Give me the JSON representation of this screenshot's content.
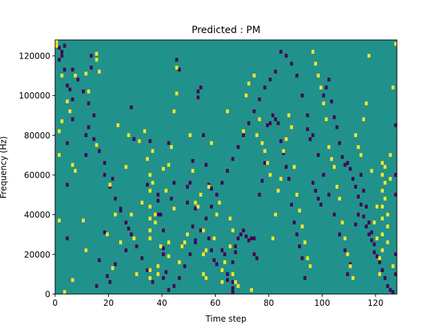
{
  "chart_data": {
    "type": "heatmap",
    "title": "Predicted : PM",
    "xlabel": "Time step",
    "ylabel": "Frequency (Hz)",
    "xlim": [
      0,
      128
    ],
    "ylim": [
      0,
      128000
    ],
    "x_ticks": [
      0,
      20,
      40,
      60,
      80,
      100,
      120
    ],
    "y_ticks": [
      0,
      20000,
      40000,
      60000,
      80000,
      100000,
      120000
    ],
    "x_tick_labels": [
      "0",
      "20",
      "40",
      "60",
      "80",
      "100",
      "120"
    ],
    "y_tick_labels": [
      "0",
      "20000",
      "40000",
      "60000",
      "80000",
      "100000",
      "120000"
    ],
    "n_time_steps": 128,
    "n_freq_bins": 128,
    "bin_hz": 1000,
    "colors": {
      "background": "#21918c",
      "low": "#440154",
      "high": "#fde725"
    },
    "low_cells": [
      [
        1,
        124
      ],
      [
        1,
        118
      ],
      [
        2,
        122
      ],
      [
        2,
        120
      ],
      [
        3,
        125
      ],
      [
        3,
        113
      ],
      [
        4,
        55
      ],
      [
        4,
        28
      ],
      [
        4,
        105
      ],
      [
        5,
        103
      ],
      [
        6,
        98
      ],
      [
        6,
        113
      ],
      [
        14,
        90
      ],
      [
        15,
        4
      ],
      [
        16,
        17
      ],
      [
        13,
        120
      ],
      [
        13,
        114
      ],
      [
        11,
        70
      ],
      [
        12,
        84
      ],
      [
        11,
        80
      ],
      [
        18,
        60
      ],
      [
        18,
        31
      ],
      [
        19,
        9
      ],
      [
        20,
        6
      ],
      [
        21,
        58
      ],
      [
        22,
        15
      ],
      [
        24,
        43
      ],
      [
        28,
        94
      ],
      [
        27,
        33
      ],
      [
        26,
        22
      ],
      [
        29,
        78
      ],
      [
        31,
        77
      ],
      [
        34,
        55
      ],
      [
        35,
        77
      ],
      [
        38,
        50
      ],
      [
        38,
        47
      ],
      [
        38,
        40
      ],
      [
        39,
        40
      ],
      [
        40,
        32
      ],
      [
        40,
        23
      ],
      [
        40,
        20
      ],
      [
        41,
        11
      ],
      [
        40,
        8
      ],
      [
        42,
        76
      ],
      [
        43,
        48
      ],
      [
        44,
        56
      ],
      [
        45,
        118
      ],
      [
        46,
        113
      ],
      [
        47,
        24
      ],
      [
        49,
        54
      ],
      [
        49,
        46
      ],
      [
        50,
        56
      ],
      [
        51,
        34
      ],
      [
        51,
        67
      ],
      [
        52,
        27
      ],
      [
        52,
        43
      ],
      [
        53,
        99
      ],
      [
        53,
        102
      ],
      [
        54,
        104
      ],
      [
        55,
        80
      ],
      [
        56,
        65
      ],
      [
        57,
        55
      ],
      [
        58,
        53
      ],
      [
        57,
        28
      ],
      [
        58,
        22
      ],
      [
        59,
        17
      ],
      [
        60,
        15
      ],
      [
        62,
        22
      ],
      [
        63,
        20
      ],
      [
        64,
        10
      ],
      [
        64,
        7
      ],
      [
        65,
        24
      ],
      [
        66,
        16
      ],
      [
        66,
        6
      ],
      [
        66,
        3
      ],
      [
        66,
        1
      ],
      [
        67,
        24
      ],
      [
        67,
        21
      ],
      [
        68,
        28
      ],
      [
        69,
        30
      ],
      [
        70,
        32
      ],
      [
        71,
        29
      ],
      [
        72,
        27
      ],
      [
        73,
        28
      ],
      [
        74,
        28
      ],
      [
        74,
        20
      ],
      [
        75,
        18
      ],
      [
        76,
        50
      ],
      [
        77,
        57
      ],
      [
        78,
        66
      ],
      [
        79,
        85
      ],
      [
        80,
        86
      ],
      [
        81,
        90
      ],
      [
        82,
        88
      ],
      [
        83,
        86
      ],
      [
        84,
        77
      ],
      [
        85,
        71
      ],
      [
        86,
        64
      ],
      [
        87,
        58
      ],
      [
        88,
        45
      ],
      [
        89,
        36
      ],
      [
        90,
        30
      ],
      [
        91,
        24
      ],
      [
        92,
        18
      ],
      [
        93,
        8
      ],
      [
        94,
        83
      ],
      [
        95,
        78
      ],
      [
        96,
        56
      ],
      [
        97,
        52
      ],
      [
        98,
        48
      ],
      [
        99,
        45
      ],
      [
        100,
        100
      ],
      [
        101,
        104
      ],
      [
        102,
        108
      ],
      [
        103,
        97
      ],
      [
        104,
        89
      ],
      [
        105,
        84
      ],
      [
        106,
        76
      ],
      [
        107,
        69
      ],
      [
        108,
        65
      ],
      [
        109,
        66
      ],
      [
        110,
        63
      ],
      [
        111,
        58
      ],
      [
        112,
        54
      ],
      [
        113,
        49
      ],
      [
        114,
        45
      ],
      [
        115,
        39
      ],
      [
        116,
        34
      ],
      [
        117,
        30
      ],
      [
        118,
        27
      ],
      [
        119,
        21
      ],
      [
        120,
        19
      ],
      [
        121,
        16
      ],
      [
        122,
        12
      ],
      [
        123,
        8
      ],
      [
        124,
        4
      ],
      [
        125,
        2
      ],
      [
        126,
        1
      ],
      [
        127,
        10
      ],
      [
        127,
        20
      ],
      [
        127,
        50
      ],
      [
        127,
        60
      ],
      [
        127,
        85
      ],
      [
        114,
        60
      ],
      [
        115,
        52
      ],
      [
        116,
        44
      ],
      [
        117,
        36
      ],
      [
        118,
        31
      ],
      [
        119,
        25
      ],
      [
        113,
        40
      ],
      [
        112,
        35
      ],
      [
        110,
        15
      ],
      [
        109,
        10
      ],
      [
        108,
        22
      ],
      [
        106,
        30
      ],
      [
        104,
        40
      ],
      [
        102,
        50
      ],
      [
        100,
        60
      ],
      [
        98,
        70
      ],
      [
        96,
        80
      ],
      [
        94,
        90
      ],
      [
        92,
        100
      ],
      [
        90,
        110
      ],
      [
        88,
        116
      ],
      [
        86,
        120
      ],
      [
        84,
        122
      ],
      [
        82,
        112
      ],
      [
        80,
        108
      ],
      [
        78,
        104
      ],
      [
        76,
        98
      ],
      [
        74,
        92
      ],
      [
        72,
        86
      ],
      [
        70,
        80
      ],
      [
        68,
        74
      ],
      [
        66,
        68
      ],
      [
        64,
        62
      ],
      [
        62,
        56
      ],
      [
        60,
        50
      ],
      [
        58,
        44
      ],
      [
        56,
        38
      ],
      [
        54,
        32
      ],
      [
        52,
        26
      ],
      [
        50,
        20
      ],
      [
        48,
        14
      ],
      [
        46,
        8
      ],
      [
        44,
        4
      ],
      [
        42,
        2
      ],
      [
        36,
        6
      ],
      [
        34,
        12
      ],
      [
        32,
        18
      ],
      [
        30,
        24
      ],
      [
        28,
        30
      ],
      [
        26,
        36
      ],
      [
        24,
        42
      ],
      [
        22,
        48
      ],
      [
        20,
        54
      ],
      [
        18,
        66
      ],
      [
        16,
        72
      ],
      [
        14,
        78
      ],
      [
        12,
        96
      ],
      [
        10,
        102
      ],
      [
        8,
        108
      ],
      [
        6,
        88
      ],
      [
        4,
        76
      ]
    ],
    "high_cells": [
      [
        0,
        127
      ],
      [
        0,
        125
      ],
      [
        1,
        70
      ],
      [
        1,
        82
      ],
      [
        1,
        37
      ],
      [
        2,
        87
      ],
      [
        2,
        110
      ],
      [
        3,
        1
      ],
      [
        4,
        97
      ],
      [
        5,
        92
      ],
      [
        6,
        65
      ],
      [
        6,
        7
      ],
      [
        7,
        110
      ],
      [
        7,
        62
      ],
      [
        10,
        37
      ],
      [
        11,
        22
      ],
      [
        11,
        111
      ],
      [
        12,
        102
      ],
      [
        15,
        75
      ],
      [
        15,
        121
      ],
      [
        15,
        118
      ],
      [
        16,
        112
      ],
      [
        19,
        30
      ],
      [
        20,
        55
      ],
      [
        21,
        13
      ],
      [
        22,
        40
      ],
      [
        23,
        85
      ],
      [
        24,
        26
      ],
      [
        26,
        64
      ],
      [
        27,
        80
      ],
      [
        28,
        40
      ],
      [
        29,
        28
      ],
      [
        30,
        10
      ],
      [
        31,
        77
      ],
      [
        32,
        46
      ],
      [
        33,
        82
      ],
      [
        34,
        68
      ],
      [
        35,
        60
      ],
      [
        35,
        52
      ],
      [
        35,
        44
      ],
      [
        35,
        38
      ],
      [
        35,
        32
      ],
      [
        35,
        28
      ],
      [
        35,
        8
      ],
      [
        35,
        12
      ],
      [
        36,
        72
      ],
      [
        36,
        56
      ],
      [
        37,
        40
      ],
      [
        37,
        36
      ],
      [
        38,
        10
      ],
      [
        38,
        14
      ],
      [
        39,
        24
      ],
      [
        40,
        63
      ],
      [
        41,
        52
      ],
      [
        42,
        19
      ],
      [
        42,
        26
      ],
      [
        42,
        65
      ],
      [
        43,
        74
      ],
      [
        44,
        92
      ],
      [
        44,
        43
      ],
      [
        45,
        101
      ],
      [
        45,
        114
      ],
      [
        46,
        16
      ],
      [
        47,
        24
      ],
      [
        48,
        26
      ],
      [
        49,
        30
      ],
      [
        50,
        80
      ],
      [
        51,
        62
      ],
      [
        52,
        46
      ],
      [
        53,
        44
      ],
      [
        54,
        50
      ],
      [
        55,
        32
      ],
      [
        55,
        20
      ],
      [
        55,
        10
      ],
      [
        56,
        8
      ],
      [
        56,
        22
      ],
      [
        57,
        54
      ],
      [
        58,
        76
      ],
      [
        59,
        28
      ],
      [
        60,
        40
      ],
      [
        61,
        46
      ],
      [
        62,
        6
      ],
      [
        62,
        12
      ],
      [
        63,
        16
      ],
      [
        64,
        92
      ],
      [
        65,
        38
      ],
      [
        65,
        24
      ],
      [
        66,
        32
      ],
      [
        66,
        10
      ],
      [
        67,
        6
      ],
      [
        68,
        4
      ],
      [
        70,
        82
      ],
      [
        71,
        100
      ],
      [
        72,
        106
      ],
      [
        73,
        2
      ],
      [
        74,
        110
      ],
      [
        75,
        80
      ],
      [
        76,
        88
      ],
      [
        77,
        76
      ],
      [
        78,
        72
      ],
      [
        79,
        66
      ],
      [
        80,
        60
      ],
      [
        81,
        28
      ],
      [
        82,
        40
      ],
      [
        83,
        52
      ],
      [
        84,
        58
      ],
      [
        85,
        72
      ],
      [
        86,
        78
      ],
      [
        87,
        90
      ],
      [
        88,
        84
      ],
      [
        89,
        64
      ],
      [
        90,
        50
      ],
      [
        91,
        42
      ],
      [
        92,
        34
      ],
      [
        93,
        26
      ],
      [
        94,
        18
      ],
      [
        95,
        14
      ],
      [
        96,
        122
      ],
      [
        97,
        116
      ],
      [
        98,
        110
      ],
      [
        99,
        104
      ],
      [
        100,
        96
      ],
      [
        101,
        88
      ],
      [
        102,
        74
      ],
      [
        103,
        68
      ],
      [
        104,
        64
      ],
      [
        105,
        54
      ],
      [
        106,
        48
      ],
      [
        107,
        36
      ],
      [
        108,
        28
      ],
      [
        109,
        20
      ],
      [
        110,
        14
      ],
      [
        111,
        8
      ],
      [
        112,
        80
      ],
      [
        113,
        74
      ],
      [
        114,
        70
      ],
      [
        115,
        88
      ],
      [
        116,
        96
      ],
      [
        117,
        120
      ],
      [
        118,
        62
      ],
      [
        119,
        36
      ],
      [
        120,
        44
      ],
      [
        120,
        28
      ],
      [
        121,
        18
      ],
      [
        121,
        10
      ],
      [
        122,
        66
      ],
      [
        122,
        60
      ],
      [
        122,
        52
      ],
      [
        122,
        44
      ],
      [
        122,
        38
      ],
      [
        122,
        30
      ],
      [
        122,
        22
      ],
      [
        123,
        64
      ],
      [
        123,
        56
      ],
      [
        123,
        48
      ],
      [
        124,
        40
      ],
      [
        124,
        34
      ],
      [
        124,
        26
      ],
      [
        125,
        70
      ],
      [
        125,
        58
      ],
      [
        126,
        14
      ],
      [
        126,
        104
      ],
      [
        127,
        126
      ]
    ]
  }
}
